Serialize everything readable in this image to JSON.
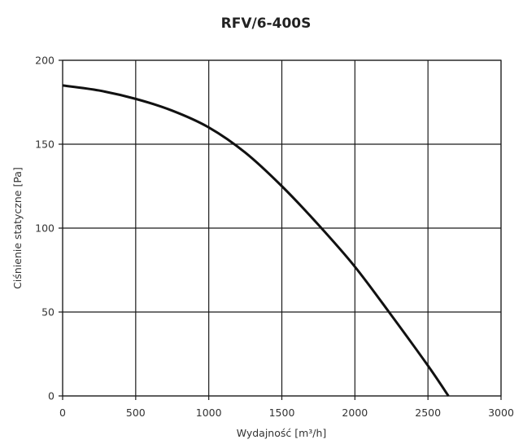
{
  "chart_data": {
    "type": "line",
    "title": "RFV/6-400S",
    "xlabel": "Wydajność [m³/h]",
    "ylabel": "Ciśnienie statyczne [Pa]",
    "xlim": [
      0,
      3000
    ],
    "ylim": [
      0,
      200
    ],
    "x_ticks": [
      "0",
      "500",
      "1000",
      "1500",
      "2000",
      "2500",
      "3000"
    ],
    "y_ticks": [
      "0",
      "50",
      "100",
      "150",
      "200"
    ],
    "grid": true,
    "line_color": "#111111",
    "grid_color": "#1a1a1a",
    "series": [
      {
        "x": [
          0,
          250,
          500,
          750,
          1000,
          1250,
          1500,
          1750,
          2000,
          2250,
          2500,
          2640
        ],
        "y": [
          185,
          182,
          177,
          170,
          160,
          145,
          125,
          102,
          77,
          48,
          18,
          0
        ]
      }
    ]
  }
}
